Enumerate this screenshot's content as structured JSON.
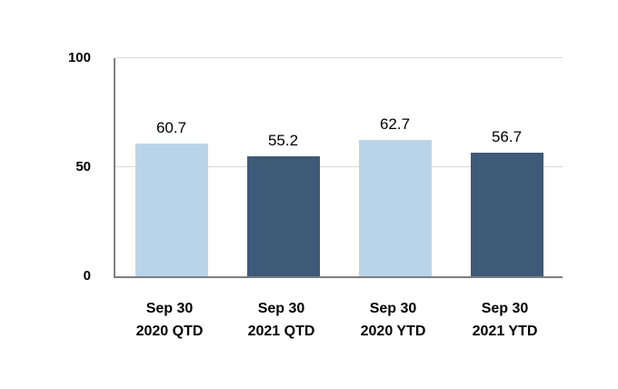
{
  "chart_data": {
    "type": "bar",
    "categories": [
      "Sep 30\n2020 QTD",
      "Sep 30\n2021 QTD",
      "Sep 30\n2020 YTD",
      "Sep 30\n2021 YTD"
    ],
    "values": [
      60.7,
      55.2,
      62.7,
      56.7
    ],
    "value_labels": [
      "60.7",
      "55.2",
      "62.7",
      "56.7"
    ],
    "bar_colors": [
      "#b9d4e9",
      "#3d5a78",
      "#b9d4e9",
      "#3d5a78"
    ],
    "title": "",
    "xlabel": "",
    "ylabel": "",
    "ylim": [
      0,
      100
    ],
    "yticks": [
      0,
      50,
      100
    ],
    "gridlines": [
      50,
      100
    ],
    "legend": null,
    "grid_on": true,
    "colors": {
      "axis": "#7f7f7f",
      "grid": "#d9d9d9",
      "text": "#000000",
      "background": "#ffffff"
    }
  }
}
